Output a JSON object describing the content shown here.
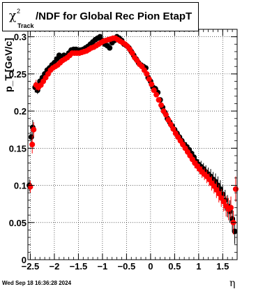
{
  "chart_data": {
    "type": "scatter",
    "title_prefix": "χ",
    "title_superscript": "2",
    "title_subscript": "Track",
    "title_main": "/NDF for Global Rec Pion EtapT",
    "xlabel": "η",
    "ylabel": "p_T [GeV/c]",
    "xlim": [
      -2.55,
      1.8
    ],
    "ylim": [
      0,
      0.31
    ],
    "x_ticks": [
      -2.5,
      -2,
      -1.5,
      -1,
      -0.5,
      0,
      0.5,
      1,
      1.5
    ],
    "x_tick_labels": [
      "−2.5",
      "−2",
      "−1.5",
      "−1",
      "−0.5",
      "0",
      "0.5",
      "1",
      "1.5"
    ],
    "y_ticks": [
      0,
      0.05,
      0.1,
      0.15,
      0.2,
      0.25,
      0.3
    ],
    "y_tick_labels": [
      "0",
      "0.05",
      "0.1",
      "0.15",
      "0.2",
      "0.25",
      "0.3"
    ],
    "grid": true,
    "timestamp": "Wed Sep 18 16:36:28 2024",
    "series": [
      {
        "color": "#000000",
        "x": [
          -2.52,
          -2.48,
          -2.45,
          -2.4,
          -2.35,
          -2.3,
          -2.25,
          -2.2,
          -2.15,
          -2.1,
          -2.05,
          -2.0,
          -1.95,
          -1.9,
          -1.85,
          -1.8,
          -1.75,
          -1.7,
          -1.65,
          -1.6,
          -1.55,
          -1.5,
          -1.45,
          -1.4,
          -1.35,
          -1.3,
          -1.25,
          -1.2,
          -1.15,
          -1.1,
          -1.05,
          -1.0,
          -0.95,
          -0.9,
          -0.85,
          -0.8,
          -0.75,
          -0.7,
          -0.65,
          -0.6,
          -0.55,
          -0.5,
          -0.45,
          -0.4,
          -0.35,
          -0.3,
          -0.25,
          -0.2,
          -0.15,
          -0.1,
          -0.05,
          0.0,
          0.05,
          0.1,
          0.15,
          0.2,
          0.25,
          0.3,
          0.35,
          0.4,
          0.45,
          0.5,
          0.55,
          0.6,
          0.65,
          0.7,
          0.75,
          0.8,
          0.85,
          0.9,
          0.95,
          1.0,
          1.05,
          1.1,
          1.15,
          1.2,
          1.25,
          1.3,
          1.35,
          1.4,
          1.45,
          1.5,
          1.55,
          1.6,
          1.65,
          1.7,
          1.75
        ],
        "y": [
          0.1,
          0.165,
          0.178,
          0.232,
          0.228,
          0.24,
          0.245,
          0.25,
          0.255,
          0.258,
          0.262,
          0.265,
          0.27,
          0.275,
          0.272,
          0.275,
          0.272,
          0.278,
          0.282,
          0.283,
          0.283,
          0.282,
          0.282,
          0.283,
          0.285,
          0.287,
          0.29,
          0.293,
          0.296,
          0.298,
          0.3,
          0.295,
          0.29,
          0.288,
          0.285,
          0.292,
          0.295,
          0.3,
          0.298,
          0.295,
          0.29,
          0.288,
          0.285,
          0.28,
          0.275,
          0.27,
          0.265,
          0.262,
          0.26,
          0.258,
          0.245,
          0.24,
          0.232,
          0.23,
          0.225,
          0.215,
          0.205,
          0.198,
          0.19,
          0.185,
          0.18,
          0.175,
          0.17,
          0.165,
          0.16,
          0.155,
          0.152,
          0.148,
          0.143,
          0.138,
          0.132,
          0.128,
          0.125,
          0.122,
          0.118,
          0.115,
          0.112,
          0.108,
          0.105,
          0.1,
          0.095,
          0.088,
          0.08,
          0.072,
          0.065,
          0.055,
          0.038
        ],
        "err": [
          0.008,
          0.012,
          0.01,
          0.007,
          0.005,
          0.004,
          0.003,
          0.003,
          0.003,
          0.003,
          0.003,
          0.003,
          0.003,
          0.003,
          0.003,
          0.003,
          0.003,
          0.003,
          0.003,
          0.003,
          0.003,
          0.003,
          0.003,
          0.003,
          0.003,
          0.003,
          0.003,
          0.003,
          0.003,
          0.003,
          0.003,
          0.003,
          0.003,
          0.003,
          0.003,
          0.003,
          0.003,
          0.003,
          0.003,
          0.003,
          0.003,
          0.003,
          0.003,
          0.003,
          0.003,
          0.003,
          0.003,
          0.003,
          0.003,
          0.003,
          0.003,
          0.003,
          0.003,
          0.003,
          0.003,
          0.003,
          0.004,
          0.004,
          0.004,
          0.004,
          0.004,
          0.005,
          0.005,
          0.005,
          0.005,
          0.005,
          0.006,
          0.006,
          0.006,
          0.007,
          0.007,
          0.007,
          0.008,
          0.008,
          0.009,
          0.009,
          0.01,
          0.01,
          0.011,
          0.012,
          0.012,
          0.013,
          0.014,
          0.015,
          0.015,
          0.016,
          0.017
        ]
      },
      {
        "color": "#ff0000",
        "x": [
          -2.5,
          -2.46,
          -2.43,
          -2.38,
          -2.33,
          -2.28,
          -2.23,
          -2.18,
          -2.13,
          -2.08,
          -2.03,
          -1.98,
          -1.93,
          -1.88,
          -1.83,
          -1.78,
          -1.73,
          -1.68,
          -1.63,
          -1.58,
          -1.53,
          -1.48,
          -1.43,
          -1.38,
          -1.33,
          -1.28,
          -1.23,
          -1.18,
          -1.13,
          -1.08,
          -1.03,
          -0.98,
          -0.93,
          -0.88,
          -0.83,
          -0.78,
          -0.73,
          -0.68,
          -0.63,
          -0.58,
          -0.53,
          -0.48,
          -0.43,
          -0.38,
          -0.33,
          -0.28,
          -0.23,
          -0.18,
          -0.13,
          -0.08,
          -0.03,
          0.02,
          0.07,
          0.12,
          0.17,
          0.22,
          0.27,
          0.32,
          0.37,
          0.42,
          0.47,
          0.52,
          0.57,
          0.62,
          0.67,
          0.72,
          0.77,
          0.82,
          0.87,
          0.92,
          0.97,
          1.02,
          1.07,
          1.12,
          1.17,
          1.22,
          1.27,
          1.32,
          1.37,
          1.42,
          1.47,
          1.52,
          1.57,
          1.62,
          1.67,
          1.72,
          1.77
        ],
        "y": [
          0.098,
          0.155,
          0.175,
          0.235,
          0.232,
          0.235,
          0.24,
          0.245,
          0.25,
          0.255,
          0.258,
          0.26,
          0.262,
          0.265,
          0.268,
          0.27,
          0.272,
          0.275,
          0.278,
          0.278,
          0.278,
          0.278,
          0.279,
          0.28,
          0.281,
          0.283,
          0.285,
          0.286,
          0.288,
          0.29,
          0.292,
          0.294,
          0.295,
          0.296,
          0.297,
          0.298,
          0.298,
          0.296,
          0.294,
          0.292,
          0.29,
          0.287,
          0.283,
          0.278,
          0.272,
          0.268,
          0.263,
          0.26,
          0.255,
          0.25,
          0.243,
          0.236,
          0.228,
          0.222,
          0.215,
          0.208,
          0.2,
          0.195,
          0.188,
          0.182,
          0.176,
          0.17,
          0.165,
          0.16,
          0.155,
          0.15,
          0.145,
          0.14,
          0.135,
          0.13,
          0.126,
          0.122,
          0.118,
          0.115,
          0.112,
          0.108,
          0.103,
          0.099,
          0.094,
          0.089,
          0.083,
          0.078,
          0.072,
          0.068,
          0.07,
          0.05,
          0.095
        ],
        "err": [
          0.008,
          0.012,
          0.01,
          0.007,
          0.005,
          0.004,
          0.003,
          0.003,
          0.003,
          0.003,
          0.003,
          0.003,
          0.003,
          0.003,
          0.003,
          0.003,
          0.003,
          0.003,
          0.003,
          0.003,
          0.003,
          0.003,
          0.003,
          0.003,
          0.003,
          0.003,
          0.003,
          0.003,
          0.003,
          0.003,
          0.003,
          0.003,
          0.003,
          0.003,
          0.003,
          0.003,
          0.003,
          0.003,
          0.003,
          0.003,
          0.003,
          0.003,
          0.003,
          0.003,
          0.003,
          0.003,
          0.003,
          0.003,
          0.003,
          0.003,
          0.003,
          0.003,
          0.003,
          0.003,
          0.003,
          0.003,
          0.004,
          0.004,
          0.004,
          0.004,
          0.004,
          0.005,
          0.005,
          0.005,
          0.005,
          0.005,
          0.006,
          0.006,
          0.006,
          0.007,
          0.007,
          0.007,
          0.008,
          0.008,
          0.009,
          0.009,
          0.01,
          0.01,
          0.011,
          0.012,
          0.012,
          0.013,
          0.014,
          0.015,
          0.015,
          0.016,
          0.017
        ]
      }
    ]
  }
}
